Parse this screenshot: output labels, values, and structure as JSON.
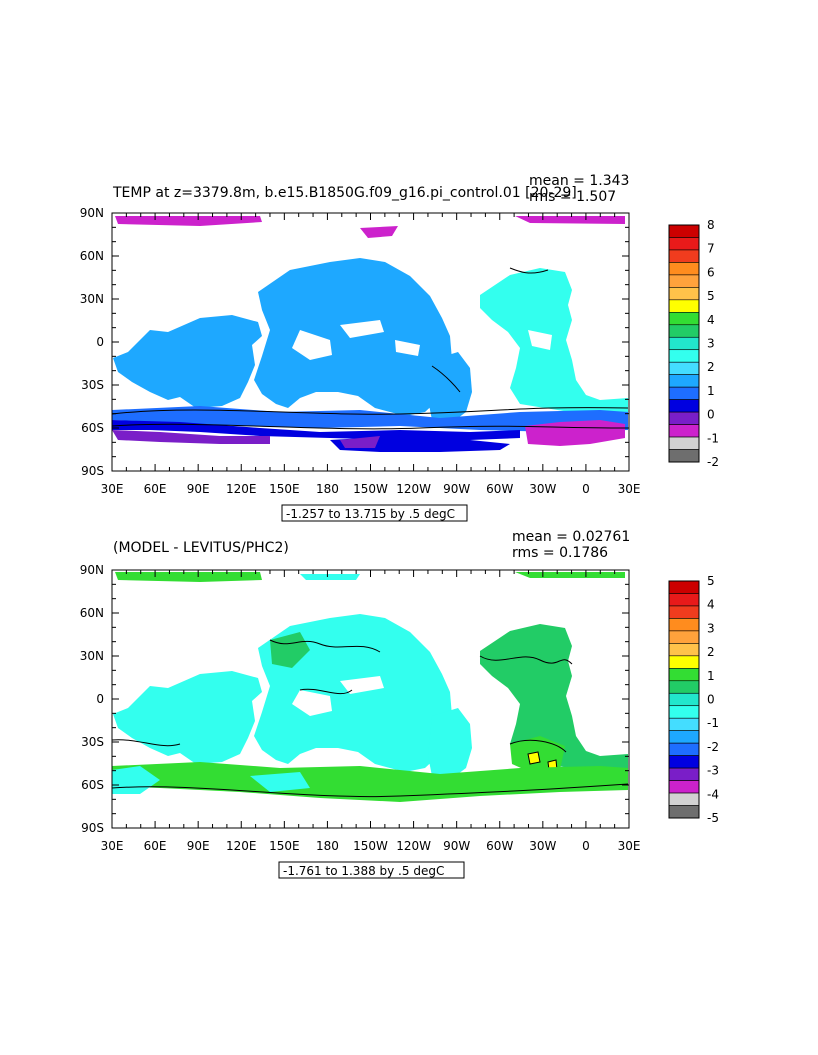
{
  "colors": {
    "ocean_gap": "#ffffff",
    "contour": "#000000"
  },
  "panels": [
    {
      "title": "TEMP at z=3379.8m, b.e15.B1850G.f09_g16.pi_control.01 [20-29]",
      "stats": {
        "mean": "mean = 1.343",
        "rms": "rms = 1.507"
      },
      "range": "-1.257 to 13.715 by .5 degC",
      "lat_labels": [
        "90N",
        "60N",
        "30N",
        "0",
        "30S",
        "60S",
        "90S"
      ],
      "lon_labels": [
        "30E",
        "60E",
        "90E",
        "120E",
        "150E",
        "180",
        "150W",
        "120W",
        "90W",
        "60W",
        "30W",
        "0",
        "30E"
      ],
      "colorbar": {
        "labels": [
          "8",
          "7",
          "6",
          "5",
          "4",
          "3",
          "2",
          "1",
          "0",
          "-1",
          "-2"
        ],
        "swatches": [
          "#cc0000",
          "#e81a1a",
          "#f03c1e",
          "#ff8c1e",
          "#ffa23c",
          "#ffc24a",
          "#ffff00",
          "#33dd33",
          "#22cc66",
          "#22e6cc",
          "#33ffee",
          "#44ddff",
          "#1ea8ff",
          "#1e6eff",
          "#0000e0",
          "#7a1ec8",
          "#cc22cc",
          "#d2d2d2",
          "#6e6e6e"
        ]
      }
    },
    {
      "title": "(MODEL - LEVITUS/PHC2)",
      "stats": {
        "mean": "mean = 0.02761",
        "rms": "rms = 0.1786"
      },
      "range": "-1.761 to 1.388 by .5 degC",
      "lat_labels": [
        "90N",
        "60N",
        "30N",
        "0",
        "30S",
        "60S",
        "90S"
      ],
      "lon_labels": [
        "30E",
        "60E",
        "90E",
        "120E",
        "150E",
        "180",
        "150W",
        "120W",
        "90W",
        "60W",
        "30W",
        "0",
        "30E"
      ],
      "colorbar": {
        "labels": [
          "5",
          "4",
          "3",
          "2",
          "1",
          "0",
          "-1",
          "-2",
          "-3",
          "-4",
          "-5"
        ],
        "swatches": [
          "#cc0000",
          "#e81a1a",
          "#f03c1e",
          "#ff8c1e",
          "#ffa23c",
          "#ffc24a",
          "#ffff00",
          "#33dd33",
          "#22cc66",
          "#22e6cc",
          "#33ffee",
          "#44ddff",
          "#1ea8ff",
          "#1e6eff",
          "#0000e0",
          "#7a1ec8",
          "#cc22cc",
          "#d2d2d2",
          "#6e6e6e"
        ]
      }
    }
  ]
}
